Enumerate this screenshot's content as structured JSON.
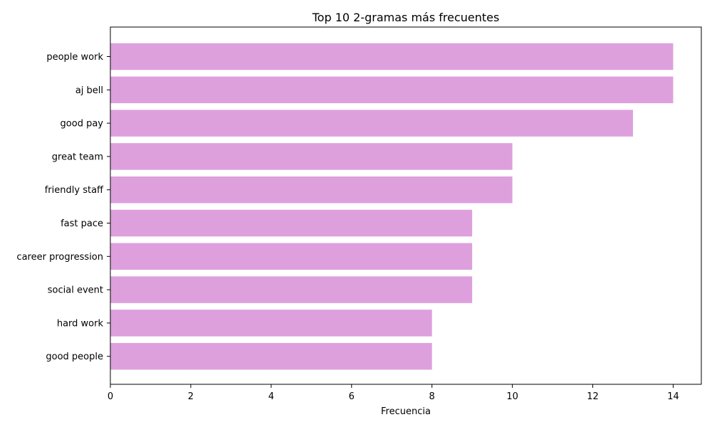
{
  "chart_data": {
    "type": "bar",
    "orientation": "horizontal",
    "title": "Top 10 2-gramas más frecuentes",
    "xlabel": "Frecuencia",
    "ylabel": "",
    "categories": [
      "people work",
      "aj bell",
      "good pay",
      "great team",
      "friendly staff",
      "fast pace",
      "career progression",
      "social event",
      "hard work",
      "good people"
    ],
    "values": [
      14,
      14,
      13,
      10,
      10,
      9,
      9,
      9,
      8,
      8
    ],
    "xlim": [
      0,
      14.7
    ],
    "xticks": [
      0,
      2,
      4,
      6,
      8,
      10,
      12,
      14
    ],
    "grid": false,
    "legend": "none",
    "bar_color": "#dda0dd"
  }
}
